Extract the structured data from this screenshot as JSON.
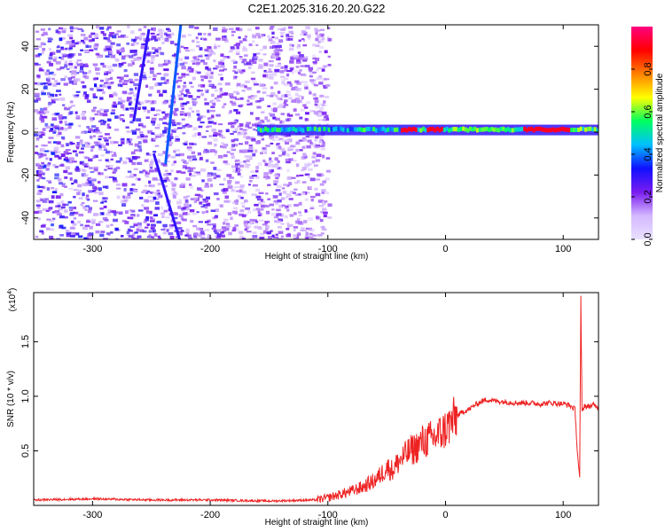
{
  "chart_data": [
    {
      "type": "heatmap",
      "title": "C2E1.2025.316.20.20.G22",
      "xlabel": "Height of straight line (km)",
      "ylabel": "Frequency (Hz)",
      "colorbar_label": "Normalized spectral amplitude",
      "xlim": [
        -350,
        130
      ],
      "ylim": [
        -50,
        50
      ],
      "x_ticks": [
        -300,
        -200,
        -100,
        0,
        100
      ],
      "y_ticks": [
        -40,
        -20,
        0,
        20,
        40
      ],
      "colorbar_ticks": [
        0.0,
        0.2,
        0.4,
        0.6,
        0.8
      ],
      "colorbar_range": [
        0,
        1
      ],
      "colormap": [
        "#ffffff",
        "#d4b8ff",
        "#7a1cf0",
        "#1010ff",
        "#00bfff",
        "#00ff60",
        "#ffff00",
        "#ff8000",
        "#ff0000",
        "#ff0080"
      ],
      "features": {
        "noise_region_x": [
          -350,
          -100
        ],
        "carrier_band": {
          "x_start": -160,
          "x_end": 130,
          "frequency_hz": 1
        },
        "streaks": [
          {
            "x_top": -225,
            "y_top": 50,
            "x_bottom": -238,
            "y_bottom": -15
          },
          {
            "x_top": -248,
            "y_top": -10,
            "x_bottom": -226,
            "y_bottom": -50
          },
          {
            "x_top": -252,
            "y_top": 48,
            "x_bottom": -265,
            "y_bottom": 5
          }
        ]
      }
    },
    {
      "type": "line",
      "xlabel": "Height of straight line (km)",
      "ylabel": "SNR (10 * v/v)",
      "scale_label": "(x10",
      "scale_exponent": "4",
      "xlim": [
        -350,
        130
      ],
      "ylim": [
        0,
        1.95
      ],
      "x_ticks": [
        -300,
        -200,
        -100,
        0,
        100
      ],
      "y_ticks": [
        0.5,
        1.0,
        1.5
      ],
      "y_tick_labels": [
        "0.5",
        "1.0",
        "1.5"
      ],
      "color": "#ee2222",
      "series": [
        {
          "x": [
            -350,
            -300,
            -250,
            -200,
            -150,
            -110,
            -100,
            -90,
            -80,
            -70,
            -60,
            -55,
            -50,
            -45,
            -40,
            -35,
            -30,
            -25,
            -20,
            -15,
            -10,
            -5,
            0,
            5,
            10,
            15,
            20,
            25,
            30,
            35,
            40,
            50,
            60,
            70,
            80,
            90,
            100,
            105,
            110,
            112,
            114,
            115,
            116,
            118,
            120,
            125,
            130
          ],
          "values": [
            0.05,
            0.06,
            0.05,
            0.05,
            0.04,
            0.05,
            0.07,
            0.1,
            0.13,
            0.17,
            0.23,
            0.28,
            0.35,
            0.32,
            0.4,
            0.45,
            0.5,
            0.53,
            0.58,
            0.6,
            0.62,
            0.65,
            0.7,
            0.76,
            0.82,
            0.86,
            0.88,
            0.92,
            0.95,
            0.97,
            0.96,
            0.95,
            0.94,
            0.94,
            0.93,
            0.94,
            0.93,
            0.92,
            0.88,
            0.5,
            0.25,
            1.9,
            0.85,
            0.92,
            0.9,
            0.92,
            0.9
          ]
        }
      ]
    }
  ]
}
